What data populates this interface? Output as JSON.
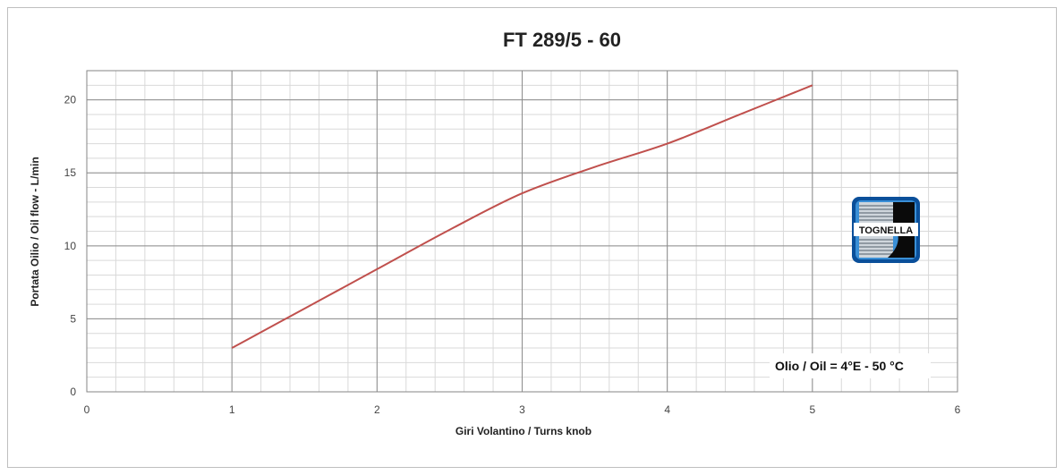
{
  "chart_data": {
    "type": "line",
    "title": "FT 289/5 - 60",
    "xlabel": "Giri Volantino / Turns knob",
    "ylabel": "Portata Oilio / Oil flow - L/min",
    "xlim": [
      0,
      6
    ],
    "ylim": [
      0,
      22
    ],
    "xticks": [
      0,
      1,
      2,
      3,
      4,
      5,
      6
    ],
    "yticks": [
      0,
      5,
      10,
      15,
      20
    ],
    "grid": true,
    "series": [
      {
        "color": "#c0504d",
        "x": [
          1,
          1.5,
          2,
          2.5,
          3,
          3.5,
          4,
          4.5,
          5
        ],
        "y": [
          3,
          5.7,
          8.4,
          11.1,
          13.6,
          15.4,
          17,
          19,
          21
        ]
      }
    ],
    "annotation": "Olio / Oil = 4°E - 50 °C"
  },
  "logo": {
    "text": "TOGNELLA"
  }
}
